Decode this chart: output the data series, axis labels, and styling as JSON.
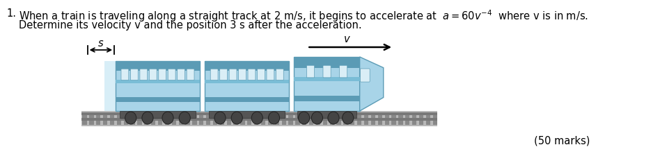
{
  "background_color": "#ffffff",
  "fig_width": 9.58,
  "fig_height": 2.22,
  "dpi": 100,
  "question_number": "1.",
  "line1_plain": "When a train is traveling along a straight track at 2 m/s, it begins to accelerate at ",
  "line1_math": "$a = 60v^{-4}$",
  "line1_end": " where v is in m/s.",
  "line2": "Determine its velocity v and the position 3 s after the acceleration.",
  "marks_text": "(50 marks)",
  "label_s": "$s$",
  "label_v": "v",
  "body_color": "#A8D4E8",
  "body_dark": "#5B9BB5",
  "body_mid": "#7ABDD6",
  "window_color": "#DAEEF6",
  "track_main": "#A0A0A0",
  "track_light": "#C8C8C8",
  "track_dark": "#707070",
  "wheel_color": "#444444"
}
